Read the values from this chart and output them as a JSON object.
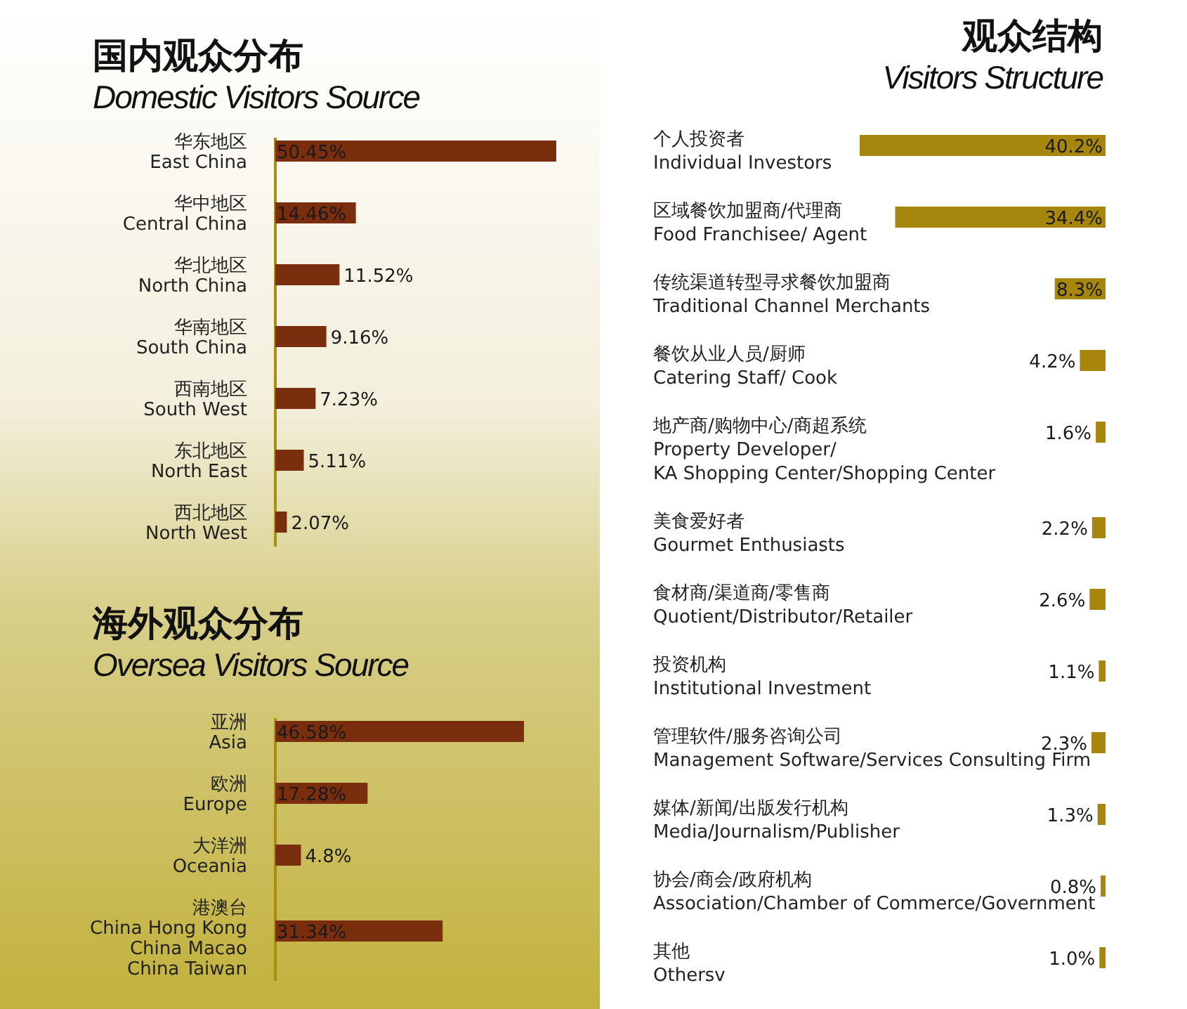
{
  "chart_data": [
    {
      "type": "bar",
      "orientation": "horizontal",
      "title": "国内观众分布",
      "subtitle": "Domestic Visitors Source",
      "categories": [
        "华东地区\nEast China",
        "华中地区\nCentral China",
        "华北地区\nNorth China",
        "华南地区\nSouth China",
        "西南地区\nSouth West",
        "东北地区\nNorth East",
        "西北地区\nNorth West"
      ],
      "values": [
        50.45,
        14.46,
        11.52,
        9.16,
        7.23,
        5.11,
        2.07
      ],
      "value_labels": [
        "50.45%",
        "14.46%",
        "11.52%",
        "9.16%",
        "7.23%",
        "5.11%",
        "2.07%"
      ],
      "color": "#7b2e0e"
    },
    {
      "type": "bar",
      "orientation": "horizontal",
      "title": "海外观众分布",
      "subtitle": "Oversea Visitors Source",
      "categories": [
        "亚洲\nAsia",
        "欧洲\nEurope",
        "大洋洲\nOceania",
        "港澳台\nChina Hong Kong\nChina Macao\nChina Taiwan"
      ],
      "values": [
        46.58,
        17.28,
        4.8,
        31.34
      ],
      "value_labels": [
        "46.58%",
        "17.28%",
        "4.8%",
        "31.34%"
      ],
      "color": "#7b2e0e"
    },
    {
      "type": "bar",
      "orientation": "horizontal",
      "title": "观众结构",
      "subtitle": "Visitors Structure",
      "categories": [
        "个人投资者\nIndividual Investors",
        "区域餐饮加盟商/代理商\nFood Franchisee/ Agent",
        "传统渠道转型寻求餐饮加盟商\nTraditional Channel Merchants",
        "餐饮从业人员/厨师\nCatering Staff/ Cook",
        "地产商/购物中心/商超系统\nProperty Developer/\nKA Shopping Center/Shopping Center",
        "美食爱好者\nGourmet Enthusiasts",
        "食材商/渠道商/零售商\nQuotient/Distributor/Retailer",
        "投资机构\nInstitutional Investment",
        "管理软件/服务咨询公司\nManagement Software/Services Consulting Firm",
        "媒体/新闻/出版发行机构\nMedia/Journalism/Publisher",
        "协会/商会/政府机构\nAssociation/Chamber of Commerce/Government",
        "其他\nOthersv"
      ],
      "values": [
        40.2,
        34.4,
        8.3,
        4.2,
        1.6,
        2.2,
        2.6,
        1.1,
        2.3,
        1.3,
        0.8,
        1.0
      ],
      "value_labels": [
        "40.2%",
        "34.4%",
        "8.3%",
        "4.2%",
        "1.6%",
        "2.2%",
        "2.6%",
        "1.1%",
        "2.3%",
        "1.3%",
        "0.8%",
        "1.0%"
      ],
      "color": "#a6860c"
    }
  ]
}
